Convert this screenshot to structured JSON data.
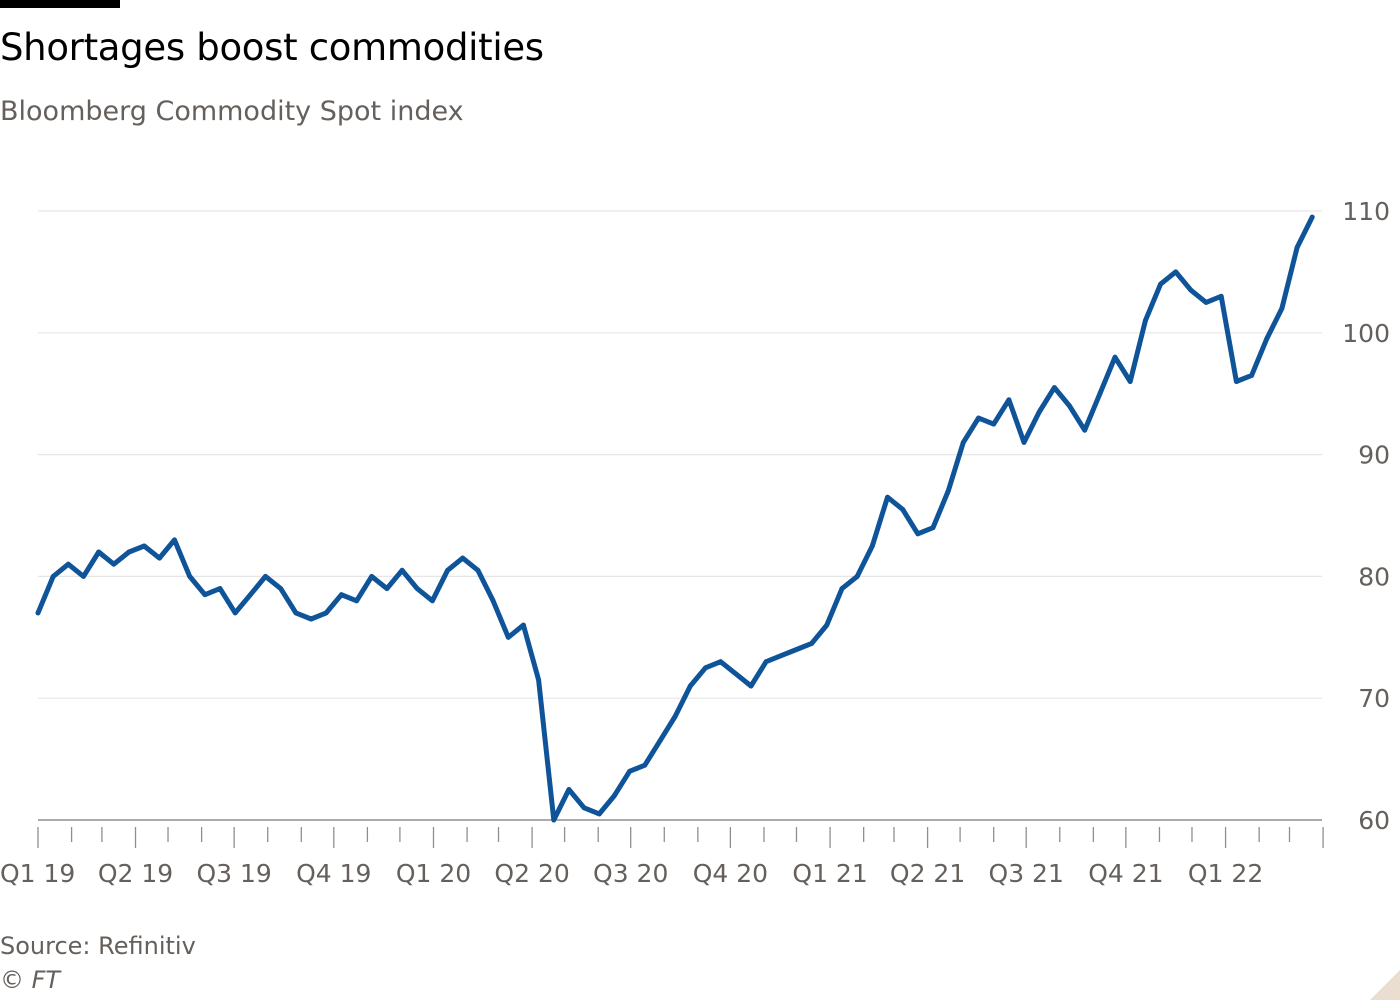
{
  "header": {
    "title": "Shortages boost commodities",
    "subtitle": "Bloomberg Commodity Spot index"
  },
  "footer": {
    "source": "Source: Refinitiv",
    "copyright": "© FT"
  },
  "colors": {
    "line": "#0f5499",
    "grid": "#e6e6e6",
    "axis_text": "#66605c",
    "corner": "#e9decf"
  },
  "chart_data": {
    "type": "line",
    "title": "Shortages boost commodities",
    "subtitle": "Bloomberg Commodity Spot index",
    "xlabel": "",
    "ylabel": "",
    "xlim": [
      "2019-01-01",
      "2022-03-31"
    ],
    "ylim": [
      60,
      110
    ],
    "y_axis_position": "right",
    "grid": true,
    "y_ticks": [
      60,
      70,
      80,
      90,
      100,
      110
    ],
    "x_tick_labels": [
      "Q1 19",
      "Q2 19",
      "Q3 19",
      "Q4 19",
      "Q1 20",
      "Q2 20",
      "Q3 20",
      "Q4 20",
      "Q1 21",
      "Q2 21",
      "Q3 21",
      "Q4 21",
      "Q1 22"
    ],
    "series": [
      {
        "x": [
          "2019-01-01",
          "2019-01-15",
          "2019-01-29",
          "2019-02-12",
          "2019-02-26",
          "2019-03-12",
          "2019-03-26",
          "2019-04-09",
          "2019-04-23",
          "2019-05-07",
          "2019-05-21",
          "2019-06-04",
          "2019-06-18",
          "2019-07-02",
          "2019-07-16",
          "2019-07-30",
          "2019-08-13",
          "2019-08-27",
          "2019-09-10",
          "2019-09-24",
          "2019-10-08",
          "2019-10-22",
          "2019-11-05",
          "2019-11-19",
          "2019-12-03",
          "2019-12-17",
          "2019-12-31",
          "2020-01-14",
          "2020-01-28",
          "2020-02-11",
          "2020-02-25",
          "2020-03-10",
          "2020-03-24",
          "2020-04-07",
          "2020-04-21",
          "2020-05-05",
          "2020-05-19",
          "2020-06-02",
          "2020-06-16",
          "2020-06-30",
          "2020-07-14",
          "2020-07-28",
          "2020-08-11",
          "2020-08-25",
          "2020-09-08",
          "2020-09-22",
          "2020-10-06",
          "2020-10-20",
          "2020-11-03",
          "2020-11-17",
          "2020-12-01",
          "2020-12-15",
          "2020-12-29",
          "2021-01-12",
          "2021-01-26",
          "2021-02-09",
          "2021-02-23",
          "2021-03-09",
          "2021-03-23",
          "2021-04-06",
          "2021-04-20",
          "2021-05-04",
          "2021-05-18",
          "2021-06-01",
          "2021-06-15",
          "2021-06-29",
          "2021-07-13",
          "2021-07-27",
          "2021-08-10",
          "2021-08-24",
          "2021-09-07",
          "2021-09-21",
          "2021-10-05",
          "2021-10-19",
          "2021-11-02",
          "2021-11-16",
          "2021-11-30",
          "2021-12-14",
          "2021-12-28",
          "2022-01-11",
          "2022-01-25",
          "2022-02-08",
          "2022-02-22",
          "2022-03-08",
          "2022-03-22"
        ],
        "values": [
          77.0,
          80.0,
          81.0,
          80.0,
          82.0,
          81.0,
          82.0,
          82.5,
          81.5,
          83.0,
          80.0,
          78.5,
          79.0,
          77.0,
          78.5,
          80.0,
          79.0,
          77.0,
          76.5,
          77.0,
          78.5,
          78.0,
          80.0,
          79.0,
          80.5,
          79.0,
          78.0,
          80.5,
          81.5,
          80.5,
          78.0,
          75.0,
          76.0,
          71.5,
          60.0,
          62.5,
          61.0,
          60.5,
          62.0,
          64.0,
          64.5,
          66.5,
          68.5,
          71.0,
          72.5,
          73.0,
          72.0,
          71.0,
          73.0,
          73.5,
          74.0,
          74.5,
          76.0,
          79.0,
          80.0,
          82.5,
          86.5,
          85.5,
          83.5,
          84.0,
          87.0,
          91.0,
          93.0,
          92.5,
          94.5,
          91.0,
          93.5,
          95.5,
          94.0,
          92.0,
          95.0,
          98.0,
          96.0,
          101.0,
          104.0,
          105.0,
          103.5,
          102.5,
          103.0,
          96.0,
          96.5,
          99.5,
          102.0,
          107.0,
          109.5
        ]
      }
    ]
  }
}
